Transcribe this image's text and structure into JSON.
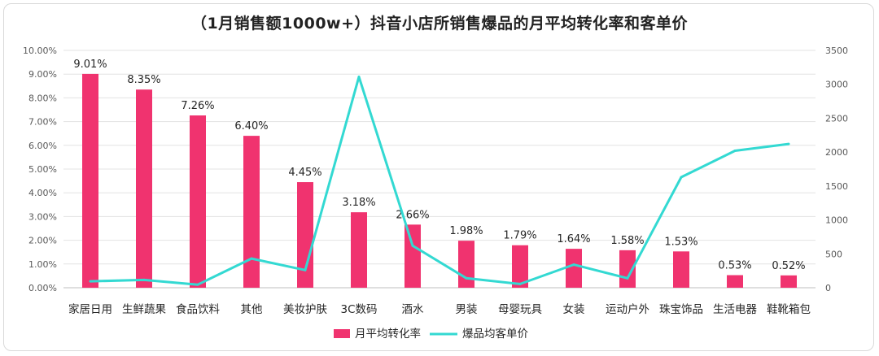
{
  "chart_data": {
    "type": "bar",
    "title": "（1月销售额1000w+）抖音小店所销售爆品的月平均转化率和客单价",
    "categories": [
      "家居日用",
      "生鲜蔬果",
      "食品饮料",
      "其他",
      "美妆护肤",
      "3C数码",
      "酒水",
      "男装",
      "母婴玩具",
      "女装",
      "运动户外",
      "珠宝饰品",
      "生活电器",
      "鞋靴箱包"
    ],
    "series": [
      {
        "name": "月平均转化率",
        "type": "bar",
        "axis": "left",
        "color": "#f0336f",
        "values": [
          9.01,
          8.35,
          7.26,
          6.4,
          4.45,
          3.18,
          2.66,
          1.98,
          1.79,
          1.64,
          1.58,
          1.53,
          0.53,
          0.52
        ],
        "labels": [
          "9.01%",
          "8.35%",
          "7.26%",
          "6.40%",
          "4.45%",
          "3.18%",
          "2.66%",
          "1.98%",
          "1.79%",
          "1.64%",
          "1.58%",
          "1.53%",
          "0.53%",
          "0.52%"
        ]
      },
      {
        "name": "爆品均客单价",
        "type": "line",
        "axis": "right",
        "color": "#33d9d2",
        "values": [
          95,
          115,
          45,
          430,
          260,
          3110,
          620,
          140,
          55,
          340,
          140,
          1630,
          2020,
          2120
        ]
      }
    ],
    "y_left": {
      "min": 0,
      "max": 10,
      "step": 1,
      "ticks": [
        "0.00%",
        "1.00%",
        "2.00%",
        "3.00%",
        "4.00%",
        "5.00%",
        "6.00%",
        "7.00%",
        "8.00%",
        "9.00%",
        "10.00%"
      ]
    },
    "y_right": {
      "min": 0,
      "max": 3500,
      "step": 500,
      "ticks": [
        "0",
        "500",
        "1000",
        "1500",
        "2000",
        "2500",
        "3000",
        "3500"
      ]
    },
    "grid": true,
    "legend_position": "bottom"
  }
}
